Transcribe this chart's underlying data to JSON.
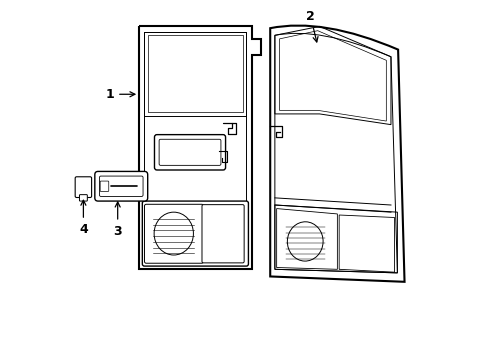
{
  "bg_color": "#ffffff",
  "line_color": "#000000",
  "figsize": [
    4.89,
    3.6
  ],
  "dpi": 100,
  "label_1": "1",
  "label_2": "2",
  "label_3": "3",
  "label_4": "4"
}
